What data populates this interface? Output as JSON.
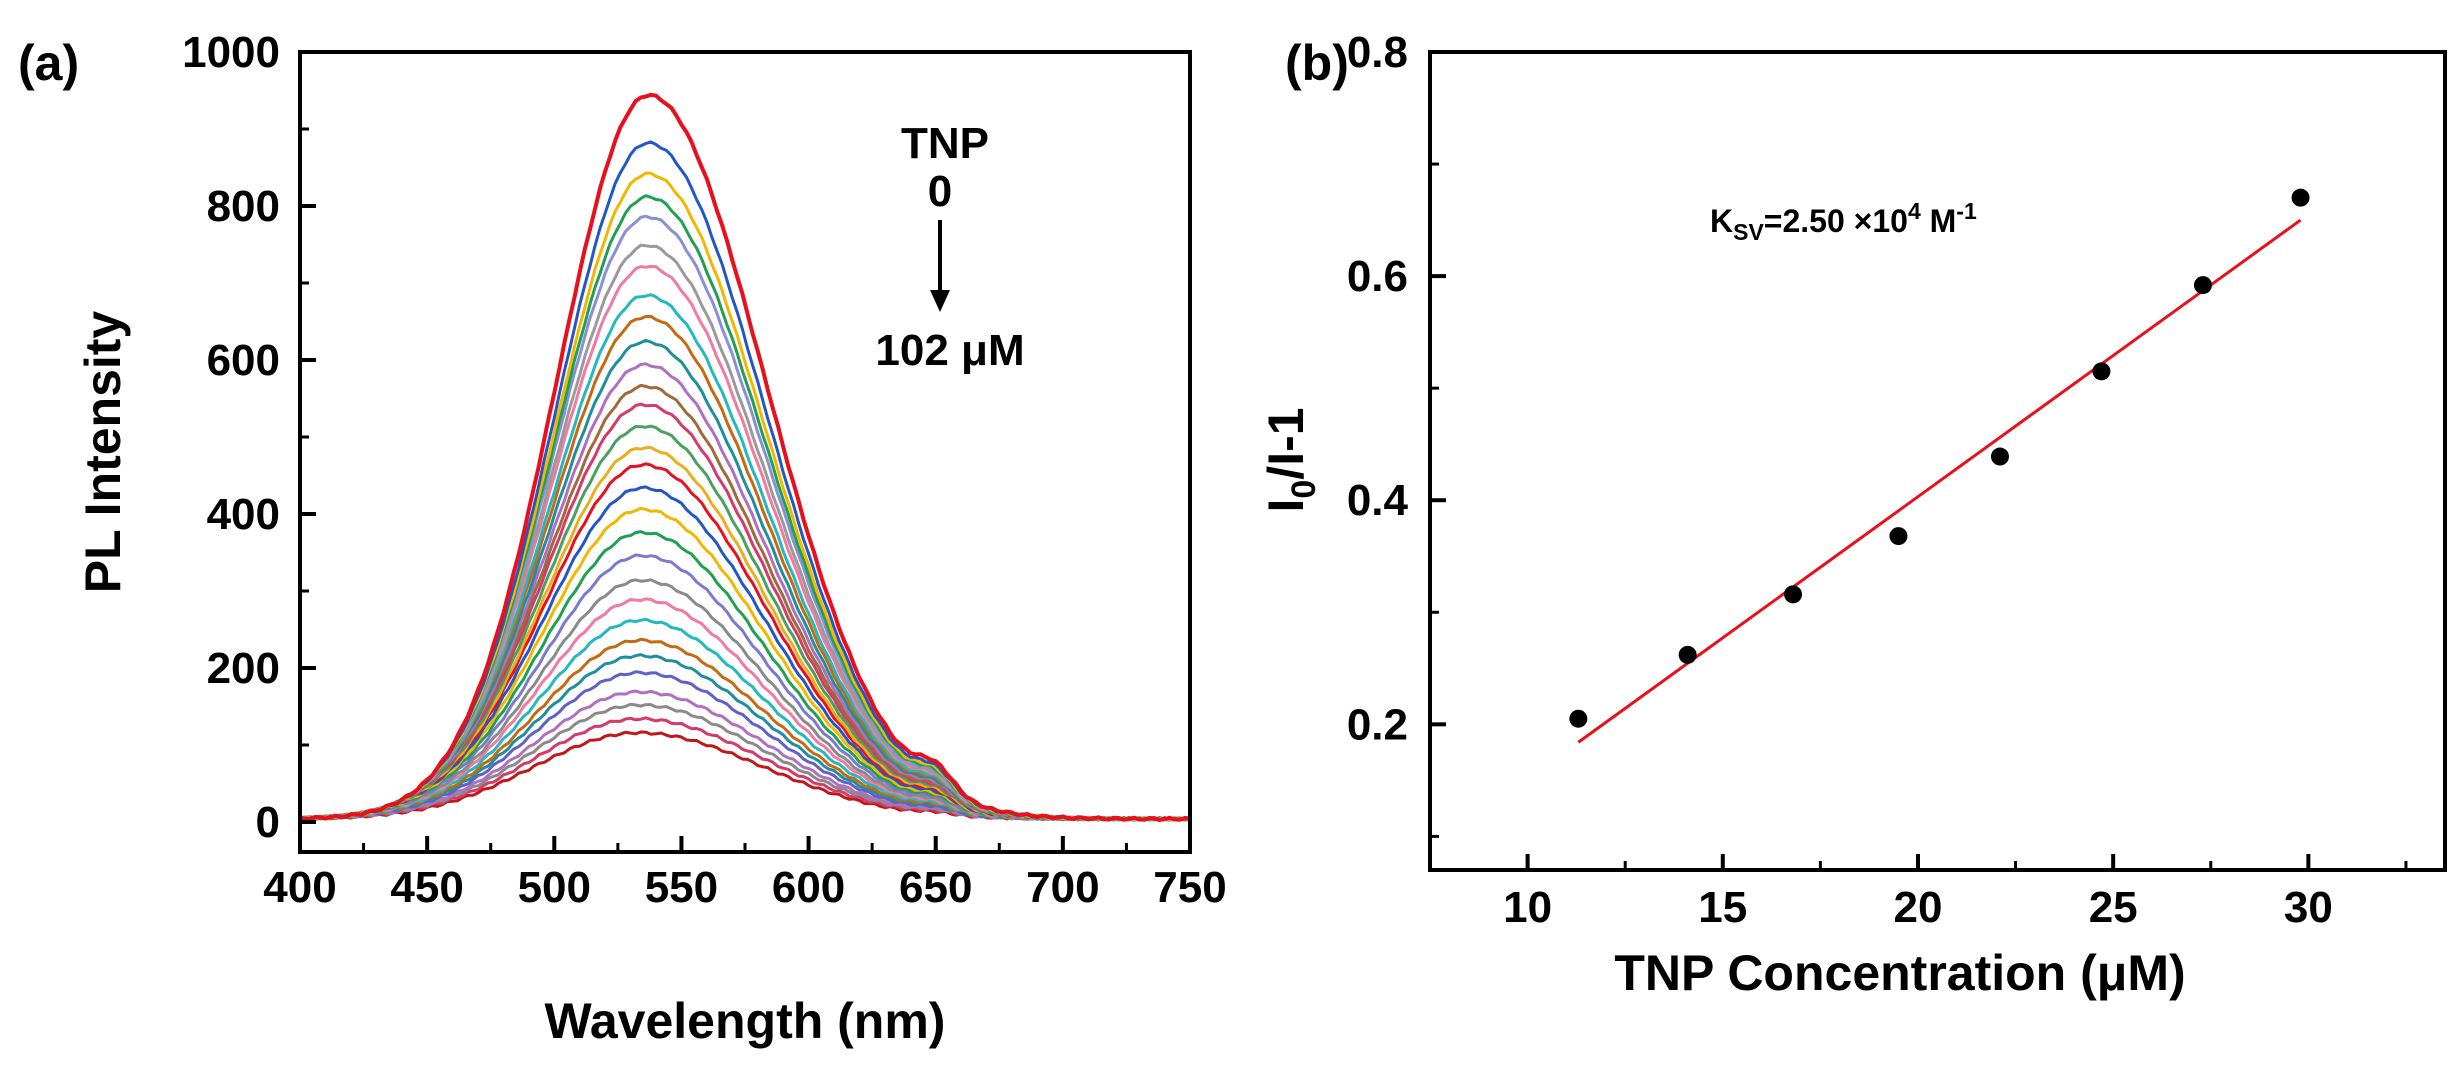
{
  "chart_data": [
    {
      "panel": "(a)",
      "type": "line",
      "xlabel": "Wavelength (nm)",
      "ylabel": "PL Intensity",
      "xlim": [
        400,
        750
      ],
      "ylim": [
        0,
        1000
      ],
      "xticks": [
        400,
        450,
        500,
        550,
        600,
        650,
        700,
        750
      ],
      "yticks": [
        0,
        200,
        400,
        600,
        800,
        1000
      ],
      "annotation": {
        "title": "TNP",
        "start": "0",
        "end": "102 μM"
      },
      "peak_wavelength": 537,
      "series_peaks": [
        940,
        878,
        838,
        808,
        782,
        745,
        718,
        680,
        652,
        620,
        590,
        562,
        538,
        510,
        482,
        460,
        430,
        402,
        372,
        342,
        310,
        285,
        258,
        232,
        212,
        190,
        165,
        148,
        130,
        112
      ],
      "series_colors": [
        "#e8101c",
        "#2357c8",
        "#f0b800",
        "#20a050",
        "#8a8fd8",
        "#9a9a9a",
        "#f07aa0",
        "#24b8c0",
        "#c46a12",
        "#1f8fa0",
        "#b070c0",
        "#a06a3a",
        "#d43a6a",
        "#4aa060",
        "#e8b020",
        "#e8101c",
        "#2357c8",
        "#f0b800",
        "#20a050",
        "#7a7ad0",
        "#8a8a8a",
        "#f07aa0",
        "#24b8c0",
        "#c46a12",
        "#1f8fa0",
        "#6060c8",
        "#b070c0",
        "#8a8a8a",
        "#d43a6a",
        "#c01818"
      ]
    },
    {
      "panel": "(b)",
      "type": "scatter",
      "xlabel": "TNP Concentration (μM)",
      "ylabel": "I0/I-1",
      "ylabel_main": "I",
      "ylabel_sub": "0",
      "ylabel_rest": "/I-1",
      "xlim": [
        7.5,
        33.5
      ],
      "ylim": [
        0.07,
        0.8
      ],
      "xticks": [
        10,
        15,
        20,
        25,
        30
      ],
      "yticks": [
        0.2,
        0.4,
        0.6,
        0.8
      ],
      "x": [
        11.3,
        14.1,
        16.8,
        19.5,
        22.1,
        24.7,
        27.3,
        29.8
      ],
      "y": [
        0.205,
        0.262,
        0.316,
        0.368,
        0.439,
        0.515,
        0.592,
        0.67
      ],
      "fit_line": {
        "x": [
          11.3,
          29.8
        ],
        "y": [
          0.184,
          0.65
        ],
        "color": "#e8101c"
      },
      "annotation": {
        "main": "K",
        "sub": "SV",
        "mid": "=2.50 ×10",
        "sup": "4",
        "unit": " M",
        "unit_sup": "-1"
      }
    }
  ]
}
